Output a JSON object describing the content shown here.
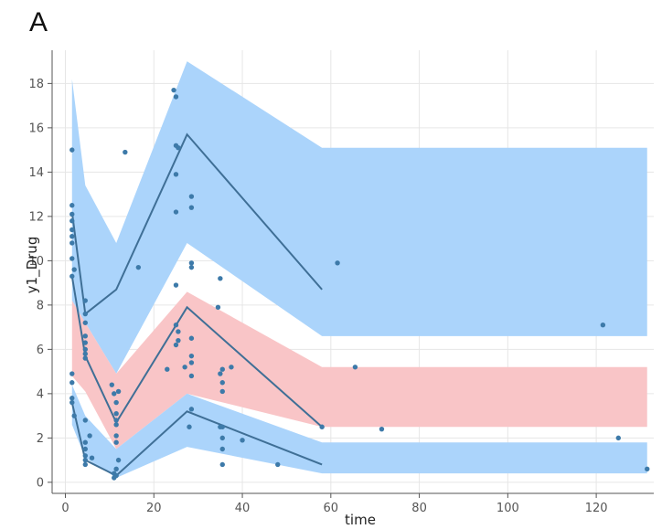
{
  "panel_label": "A",
  "colors": {
    "blue_band": "#abd4fb",
    "red_band": "#f9c5c7",
    "line": "#3f6f96",
    "point": "#3d7aa9",
    "grid": "#e6e6e6",
    "axis": "#555555"
  },
  "chart_data": {
    "type": "scatter",
    "xlabel": "time",
    "ylabel": "y1_Drug",
    "xlim": [
      -3,
      133
    ],
    "ylim": [
      -0.5,
      19.5
    ],
    "xticks": [
      0,
      20,
      40,
      60,
      80,
      100,
      120
    ],
    "yticks": [
      0,
      2,
      4,
      6,
      8,
      10,
      12,
      14,
      16,
      18
    ],
    "grid": true,
    "bands": [
      {
        "color": "blue",
        "x": [
          1.5,
          4.5,
          11.5,
          27.5,
          58,
          131.5
        ],
        "lower": [
          8.2,
          7.2,
          4.9,
          10.8,
          6.6,
          6.6
        ],
        "upper": [
          18.2,
          13.4,
          10.8,
          19.0,
          15.1,
          15.1
        ]
      },
      {
        "color": "red",
        "x": [
          1.5,
          4.5,
          11.5,
          27.5,
          58,
          131.5
        ],
        "lower": [
          4.8,
          4.1,
          1.5,
          4.0,
          2.5,
          2.5
        ],
        "upper": [
          8.2,
          7.2,
          4.9,
          8.6,
          5.2,
          5.2
        ]
      },
      {
        "color": "blue",
        "x": [
          1.5,
          4.5,
          11.5,
          27.5,
          58,
          131.5
        ],
        "lower": [
          2.6,
          1.1,
          0.2,
          1.6,
          0.4,
          0.4
        ],
        "upper": [
          4.4,
          3.0,
          1.5,
          4.0,
          1.8,
          1.8
        ]
      }
    ],
    "lines": [
      {
        "x": [
          1.5,
          4.5,
          11.5,
          27.5,
          58
        ],
        "y": [
          12.2,
          7.6,
          8.7,
          15.7,
          8.7
        ]
      },
      {
        "x": [
          1.5,
          4.5,
          11.5,
          27.5,
          58
        ],
        "y": [
          9.3,
          5.7,
          2.7,
          7.9,
          2.5
        ]
      },
      {
        "x": [
          1.5,
          4.5,
          11.5,
          27.5,
          58
        ],
        "y": [
          3.6,
          1.0,
          0.3,
          3.2,
          0.8
        ]
      }
    ],
    "points": [
      [
        1.5,
        15.0
      ],
      [
        1.5,
        12.5
      ],
      [
        1.5,
        12.1
      ],
      [
        1.5,
        11.8
      ],
      [
        1.5,
        11.4
      ],
      [
        1.5,
        11.1
      ],
      [
        1.5,
        10.8
      ],
      [
        1.5,
        10.1
      ],
      [
        2.0,
        9.6
      ],
      [
        1.5,
        9.3
      ],
      [
        1.5,
        4.9
      ],
      [
        1.5,
        4.5
      ],
      [
        1.5,
        3.8
      ],
      [
        1.5,
        3.6
      ],
      [
        2.0,
        3.0
      ],
      [
        4.5,
        8.2
      ],
      [
        4.5,
        7.6
      ],
      [
        4.5,
        7.2
      ],
      [
        4.5,
        6.6
      ],
      [
        4.5,
        6.3
      ],
      [
        4.5,
        6.0
      ],
      [
        4.5,
        5.8
      ],
      [
        4.5,
        5.6
      ],
      [
        4.5,
        2.8
      ],
      [
        4.5,
        1.8
      ],
      [
        4.5,
        1.5
      ],
      [
        4.5,
        1.2
      ],
      [
        4.5,
        1.0
      ],
      [
        4.5,
        0.8
      ],
      [
        5.5,
        2.1
      ],
      [
        6.0,
        1.1
      ],
      [
        10.5,
        4.4
      ],
      [
        11.0,
        4.0
      ],
      [
        12.0,
        4.1
      ],
      [
        11.5,
        3.6
      ],
      [
        11.5,
        3.1
      ],
      [
        11.5,
        2.8
      ],
      [
        11.5,
        2.6
      ],
      [
        11.5,
        2.1
      ],
      [
        11.5,
        1.8
      ],
      [
        12.0,
        1.0
      ],
      [
        11.5,
        0.6
      ],
      [
        11.0,
        0.4
      ],
      [
        11.5,
        0.3
      ],
      [
        11.0,
        0.2
      ],
      [
        13.5,
        14.9
      ],
      [
        16.5,
        9.7
      ],
      [
        24.5,
        17.7
      ],
      [
        25.0,
        17.4
      ],
      [
        25.0,
        15.2
      ],
      [
        25.5,
        15.1
      ],
      [
        25.0,
        13.9
      ],
      [
        25.0,
        12.2
      ],
      [
        28.5,
        12.9
      ],
      [
        28.5,
        12.4
      ],
      [
        28.5,
        9.9
      ],
      [
        28.5,
        9.7
      ],
      [
        25.0,
        8.9
      ],
      [
        25.0,
        7.1
      ],
      [
        25.5,
        6.8
      ],
      [
        28.5,
        6.5
      ],
      [
        25.0,
        6.2
      ],
      [
        28.5,
        5.7
      ],
      [
        28.5,
        5.4
      ],
      [
        27.0,
        5.2
      ],
      [
        28.5,
        4.8
      ],
      [
        23.0,
        5.1
      ],
      [
        25.5,
        6.4
      ],
      [
        28.5,
        3.3
      ],
      [
        28.0,
        2.5
      ],
      [
        35.0,
        9.2
      ],
      [
        34.5,
        7.9
      ],
      [
        35.5,
        5.1
      ],
      [
        35.0,
        4.9
      ],
      [
        37.5,
        5.2
      ],
      [
        35.5,
        4.5
      ],
      [
        35.5,
        4.1
      ],
      [
        35.0,
        2.5
      ],
      [
        35.5,
        2.5
      ],
      [
        35.5,
        2.0
      ],
      [
        35.5,
        1.5
      ],
      [
        40.0,
        1.9
      ],
      [
        35.5,
        0.8
      ],
      [
        48.0,
        0.8
      ],
      [
        58.0,
        2.5
      ],
      [
        61.5,
        9.9
      ],
      [
        65.5,
        5.2
      ],
      [
        71.5,
        2.4
      ],
      [
        121.5,
        7.1
      ],
      [
        125.0,
        2.0
      ],
      [
        131.5,
        0.6
      ]
    ]
  }
}
